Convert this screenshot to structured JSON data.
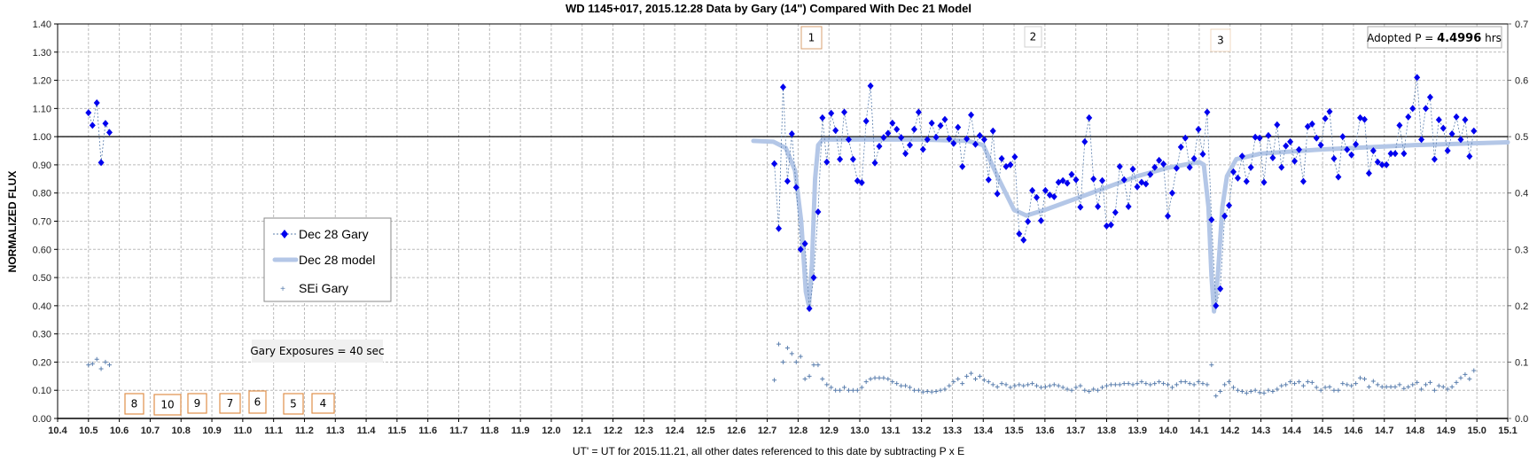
{
  "chart_data": {
    "type": "scatter",
    "title": "WD 1145+017, 2015.12.28 Data by Gary (14\") Compared With Dec 21 Model",
    "xlabel": "UT' = UT for 2015.11.21, all other dates referenced to this date by subtracting P x E",
    "ylabel": "NORMALIZED FLUX",
    "xlim": [
      10.4,
      15.1
    ],
    "ylim": [
      0.0,
      1.4
    ],
    "y2lim": [
      0.0,
      0.7
    ],
    "grid": true,
    "reference_line_y": 1.0,
    "x_ticks": [
      "10.4",
      "10.5",
      "10.6",
      "10.7",
      "10.8",
      "10.9",
      "11.0",
      "11.1",
      "11.2",
      "11.3",
      "11.4",
      "11.5",
      "11.6",
      "11.7",
      "11.8",
      "11.9",
      "12.0",
      "12.1",
      "12.2",
      "12.3",
      "12.4",
      "12.5",
      "12.6",
      "12.7",
      "12.8",
      "12.9",
      "13.0",
      "13.1",
      "13.2",
      "13.3",
      "13.4",
      "13.5",
      "13.6",
      "13.7",
      "13.8",
      "13.9",
      "14.0",
      "14.1",
      "14.2",
      "14.3",
      "14.4",
      "14.5",
      "14.6",
      "14.7",
      "14.8",
      "14.9",
      "15.0",
      "15.1"
    ],
    "y_ticks": [
      "0.00",
      "0.10",
      "0.20",
      "0.30",
      "0.40",
      "0.50",
      "0.60",
      "0.70",
      "0.80",
      "0.90",
      "1.00",
      "1.10",
      "1.20",
      "1.30",
      "1.40"
    ],
    "y2_ticks": [
      "0.0",
      "0.1",
      "0.2",
      "0.3",
      "0.4",
      "0.5",
      "0.6",
      "0.7"
    ],
    "legend": {
      "placement": "center-left",
      "entries": [
        "Dec 28 Gary",
        "Dec 28 model",
        "SEi Gary"
      ]
    },
    "series": [
      {
        "name": "Dec 28 Gary",
        "color": "#0000ee",
        "early_x": [
          10.5,
          10.513,
          10.527,
          10.541,
          10.555,
          10.568
        ],
        "early_y": [
          1.085,
          1.04,
          1.12,
          0.908,
          1.047,
          1.015
        ],
        "x_start": 12.723,
        "x_step": 0.01417,
        "y": [
          0.904,
          0.674,
          1.176,
          0.842,
          1.01,
          0.82,
          0.6,
          0.62,
          0.39,
          0.5,
          0.733,
          1.067,
          0.91,
          1.083,
          1.022,
          0.92,
          1.087,
          0.99,
          0.92,
          0.843,
          0.837,
          1.055,
          1.18,
          0.907,
          0.966,
          0.997,
          1.012,
          1.048,
          1.026,
          0.997,
          0.94,
          0.97,
          1.026,
          1.087,
          0.955,
          0.99,
          1.048,
          0.998,
          1.039,
          1.061,
          0.992,
          0.976,
          1.033,
          0.894,
          0.992,
          1.077,
          0.973,
          1.004,
          0.99,
          0.847,
          1.02,
          0.797,
          0.922,
          0.894,
          0.9,
          0.928,
          0.655,
          0.633,
          0.699,
          0.809,
          0.784,
          0.702,
          0.809,
          0.793,
          0.787,
          0.838,
          0.844,
          0.835,
          0.866,
          0.847,
          0.75,
          0.982,
          1.067,
          0.85,
          0.752,
          0.844,
          0.683,
          0.687,
          0.731,
          0.894,
          0.847,
          0.752,
          0.885,
          0.822,
          0.838,
          0.832,
          0.866,
          0.891,
          0.916,
          0.903,
          0.718,
          0.8,
          0.888,
          0.963,
          0.995,
          0.891,
          0.922,
          1.026,
          0.938,
          1.087,
          0.705,
          0.4,
          0.46,
          0.718,
          0.756,
          0.875,
          0.853,
          0.931,
          0.841,
          0.891,
          0.998,
          0.995,
          0.838,
          1.004,
          0.925,
          1.042,
          0.891,
          0.967,
          0.982,
          0.913,
          0.954,
          0.841,
          1.036,
          1.045,
          0.995,
          0.97,
          1.064,
          1.089,
          0.922,
          0.857,
          1.0,
          0.954,
          0.935,
          0.973,
          1.067,
          1.061,
          0.87,
          0.95,
          0.91,
          0.9,
          0.9,
          0.94,
          0.94,
          1.04,
          0.94,
          1.07,
          1.1,
          1.21,
          0.99,
          1.1,
          1.14,
          0.92,
          1.06,
          1.03,
          0.95,
          1.01,
          1.07,
          0.99,
          1.06,
          0.93,
          1.02
        ]
      },
      {
        "name": "Dec 28 model",
        "color": "#b4c7e7",
        "points": [
          [
            12.655,
            0.985
          ],
          [
            12.72,
            0.982
          ],
          [
            12.76,
            0.96
          ],
          [
            12.79,
            0.88
          ],
          [
            12.81,
            0.7
          ],
          [
            12.825,
            0.45
          ],
          [
            12.835,
            0.4
          ],
          [
            12.845,
            0.55
          ],
          [
            12.855,
            0.85
          ],
          [
            12.865,
            0.97
          ],
          [
            12.88,
            0.99
          ],
          [
            13.2,
            0.99
          ],
          [
            13.35,
            0.985
          ],
          [
            13.4,
            0.97
          ],
          [
            13.45,
            0.85
          ],
          [
            13.5,
            0.74
          ],
          [
            13.54,
            0.72
          ],
          [
            13.6,
            0.74
          ],
          [
            13.75,
            0.8
          ],
          [
            13.9,
            0.86
          ],
          [
            14.0,
            0.89
          ],
          [
            14.1,
            0.91
          ],
          [
            14.115,
            0.9
          ],
          [
            14.13,
            0.75
          ],
          [
            14.14,
            0.5
          ],
          [
            14.148,
            0.38
          ],
          [
            14.16,
            0.5
          ],
          [
            14.175,
            0.75
          ],
          [
            14.19,
            0.86
          ],
          [
            14.22,
            0.92
          ],
          [
            14.3,
            0.94
          ],
          [
            14.5,
            0.955
          ],
          [
            14.8,
            0.97
          ],
          [
            15.1,
            0.98
          ]
        ]
      },
      {
        "name": "SEi Gary",
        "axis": "secondary",
        "color": "#5b7fae",
        "early_x": [
          10.5,
          10.513,
          10.527,
          10.541,
          10.555,
          10.568
        ],
        "early_y": [
          0.095,
          0.097,
          0.105,
          0.088,
          0.1,
          0.095
        ],
        "x_start": 12.723,
        "x_step": 0.01417,
        "y": [
          0.068,
          0.132,
          0.1,
          0.125,
          0.115,
          0.1,
          0.11,
          0.07,
          0.075,
          0.095,
          0.095,
          0.07,
          0.06,
          0.055,
          0.05,
          0.05,
          0.055,
          0.05,
          0.05,
          0.05,
          0.055,
          0.065,
          0.07,
          0.072,
          0.072,
          0.072,
          0.07,
          0.065,
          0.062,
          0.058,
          0.058,
          0.055,
          0.05,
          0.05,
          0.047,
          0.048,
          0.047,
          0.048,
          0.05,
          0.052,
          0.058,
          0.065,
          0.07,
          0.062,
          0.075,
          0.08,
          0.07,
          0.075,
          0.068,
          0.065,
          0.06,
          0.056,
          0.062,
          0.06,
          0.055,
          0.058,
          0.06,
          0.058,
          0.06,
          0.062,
          0.058,
          0.055,
          0.056,
          0.058,
          0.06,
          0.058,
          0.055,
          0.052,
          0.05,
          0.055,
          0.058,
          0.05,
          0.048,
          0.052,
          0.05,
          0.055,
          0.058,
          0.06,
          0.06,
          0.06,
          0.062,
          0.062,
          0.06,
          0.062,
          0.065,
          0.062,
          0.06,
          0.062,
          0.065,
          0.062,
          0.06,
          0.055,
          0.06,
          0.065,
          0.065,
          0.062,
          0.06,
          0.065,
          0.062,
          0.06,
          0.095,
          0.04,
          0.048,
          0.06,
          0.065,
          0.055,
          0.05,
          0.048,
          0.045,
          0.048,
          0.05,
          0.046,
          0.045,
          0.05,
          0.048,
          0.052,
          0.058,
          0.06,
          0.065,
          0.062,
          0.065,
          0.058,
          0.065,
          0.064,
          0.055,
          0.05,
          0.055,
          0.056,
          0.05,
          0.05,
          0.062,
          0.06,
          0.058,
          0.062,
          0.072,
          0.07,
          0.056,
          0.066,
          0.06,
          0.056,
          0.056,
          0.056,
          0.056,
          0.06,
          0.053,
          0.056,
          0.06,
          0.064,
          0.052,
          0.06,
          0.064,
          0.05,
          0.058,
          0.056,
          0.052,
          0.056,
          0.064,
          0.072,
          0.078,
          0.07,
          0.085
        ]
      }
    ],
    "annotations": {
      "adopted_period_prefix": "Adopted P = ",
      "adopted_period_value": "4.4996",
      "adopted_period_unit": " hrs",
      "exposures": "Gary Exposures = 40 sec",
      "markers_top": [
        {
          "label": "1",
          "border": "#d9a070"
        },
        {
          "label": "2",
          "border": "#d0d0d0"
        },
        {
          "label": "3",
          "border": "#f0d8c0"
        }
      ],
      "markers_bottom": [
        "8",
        "10",
        "9",
        "7",
        "6",
        "5",
        "4"
      ],
      "marker_bottom_border": "#e0904a"
    }
  }
}
